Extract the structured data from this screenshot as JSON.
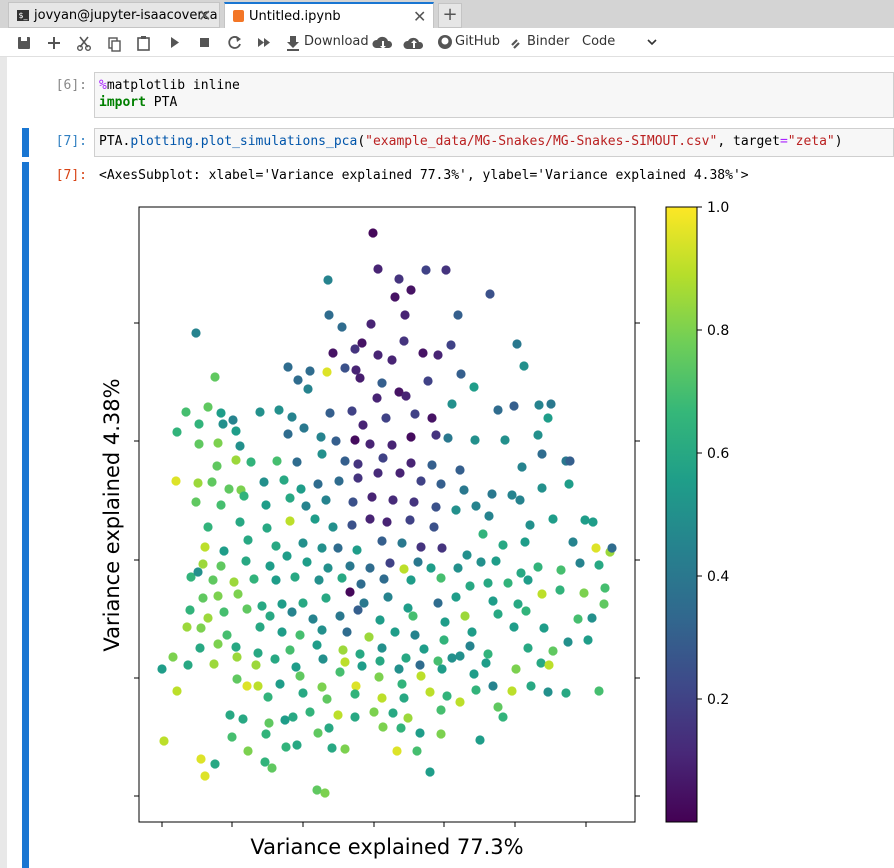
{
  "tabs": [
    {
      "label": "jovyan@jupyter-isaacoverca"
    },
    {
      "label": "Untitled.ipynb"
    }
  ],
  "toolbar": {
    "download": "Download",
    "github": "GitHub",
    "binder": "Binder",
    "cell_type": "Code"
  },
  "cells": [
    {
      "prompt": "[6]:",
      "source": [
        [
          "%",
          "matplotlib inline"
        ],
        [
          "import",
          "PTA"
        ]
      ]
    },
    {
      "prompt": "[7]:",
      "source": [
        "PTA.",
        "plotting",
        ".",
        "plot_simulations_pca",
        "(",
        "\"example_data/MG-Snakes/MG-Snakes-SIMOUT.csv\"",
        ", target",
        "=",
        "\"zeta\"",
        ")"
      ],
      "output_prompt": "[7]:",
      "output_text": "<AxesSubplot: xlabel='Variance explained 77.3%', ylabel='Variance explained 4.38%'>"
    }
  ],
  "chart_data": {
    "type": "scatter",
    "xlabel": "Variance explained 77.3%",
    "ylabel": "Variance explained 4.38%",
    "colormap": "viridis",
    "x": [
      373,
      378,
      399,
      426,
      446,
      411,
      395,
      328,
      490,
      196,
      329,
      458,
      371,
      342,
      405,
      404,
      355,
      362,
      333,
      378,
      438,
      451,
      517,
      423,
      392,
      288,
      327,
      310,
      345,
      356,
      298,
      215,
      360,
      382,
      428,
      461,
      524,
      474,
      308,
      399,
      406,
      377,
      415,
      186,
      208,
      221,
      233,
      260,
      279,
      292,
      330,
      352,
      363,
      386,
      432,
      452,
      498,
      514,
      539,
      551,
      548,
      177,
      199,
      223,
      236,
      199,
      240,
      218,
      288,
      304,
      321,
      336,
      355,
      370,
      392,
      411,
      436,
      448,
      475,
      505,
      538,
      217,
      236,
      251,
      277,
      297,
      322,
      345,
      358,
      383,
      411,
      432,
      460,
      522,
      542,
      566,
      570,
      176,
      198,
      212,
      229,
      241,
      264,
      284,
      301,
      318,
      339,
      358,
      378,
      400,
      421,
      441,
      464,
      492,
      512,
      542,
      569,
      196,
      221,
      244,
      266,
      290,
      306,
      326,
      353,
      372,
      393,
      414,
      436,
      456,
      476,
      520,
      208,
      240,
      267,
      290,
      315,
      333,
      352,
      370,
      387,
      410,
      434,
      489,
      530,
      553,
      585,
      593,
      205,
      224,
      248,
      276,
      303,
      322,
      338,
      357,
      382,
      402,
      421,
      442,
      467,
      483,
      503,
      525,
      573,
      596,
      610,
      612,
      203,
      221,
      246,
      270,
      287,
      307,
      328,
      350,
      370,
      390,
      404,
      418,
      431,
      458,
      481,
      496,
      521,
      538,
      561,
      580,
      599,
      191,
      198,
      213,
      234,
      254,
      276,
      295,
      319,
      342,
      361,
      384,
      411,
      441,
      470,
      488,
      508,
      528,
      560,
      584,
      605,
      190,
      203,
      218,
      238,
      262,
      282,
      303,
      326,
      350,
      364,
      388,
      408,
      438,
      456,
      493,
      518,
      542,
      604,
      208,
      224,
      247,
      270,
      292,
      313,
      340,
      358,
      380,
      413,
      445,
      465,
      498,
      526,
      544,
      578,
      592,
      187,
      201,
      227,
      260,
      282,
      300,
      322,
      347,
      369,
      395,
      415,
      444,
      472,
      514,
      568,
      588,
      173,
      200,
      218,
      236,
      258,
      290,
      317,
      343,
      360,
      382,
      406,
      424,
      452,
      470,
      488,
      528,
      553,
      162,
      188,
      214,
      237,
      256,
      275,
      296,
      323,
      345,
      362,
      380,
      399,
      420,
      438,
      460,
      486,
      516,
      541,
      549,
      237,
      258,
      280,
      300,
      322,
      340,
      356,
      379,
      402,
      421,
      442,
      474,
      493,
      512,
      531,
      548,
      566,
      599,
      177,
      247,
      268,
      303,
      327,
      355,
      382,
      404,
      430,
      447,
      460,
      476,
      498,
      230,
      243,
      269,
      285,
      293,
      310,
      338,
      355,
      374,
      393,
      408,
      441,
      503,
      164,
      232,
      266,
      286,
      297,
      329,
      318,
      345,
      383,
      401,
      420,
      441,
      480,
      248,
      332,
      397,
      417,
      201,
      215,
      265,
      205,
      272,
      430,
      317,
      325
    ],
    "values": [
      767,
      731,
      721,
      730,
      730,
      710,
      703,
      720,
      706,
      667,
      685,
      685,
      676,
      673,
      685,
      659,
      651,
      657,
      647,
      645,
      645,
      655,
      656,
      647,
      640,
      633,
      628,
      629,
      632,
      630,
      620,
      623,
      622,
      617,
      619,
      626,
      634,
      613,
      611,
      608,
      604,
      602,
      586,
      588,
      593,
      587,
      580,
      588,
      590,
      583,
      587,
      589,
      575,
      582,
      582,
      596,
      590,
      594,
      595,
      596,
      582,
      568,
      576,
      576,
      569,
      556,
      554,
      557,
      566,
      572,
      563,
      559,
      560,
      556,
      555,
      563,
      565,
      562,
      560,
      560,
      565,
      534,
      540,
      538,
      539,
      538,
      546,
      539,
      536,
      542,
      537,
      535,
      530,
      533,
      546,
      539,
      539,
      519,
      517,
      518,
      511,
      510,
      518,
      520,
      511,
      516,
      519,
      522,
      527,
      527,
      519,
      516,
      510,
      506,
      505,
      512,
      516,
      498,
      495,
      504,
      495,
      502,
      494,
      500,
      498,
      503,
      500,
      498,
      493,
      490,
      494,
      500,
      473,
      478,
      472,
      479,
      481,
      473,
      475,
      481,
      478,
      480,
      473,
      484,
      475,
      481,
      480,
      478,
      453,
      449,
      460,
      454,
      457,
      452,
      452,
      450,
      459,
      457,
      453,
      452,
      445,
      466,
      455,
      458,
      458,
      452,
      448,
      452,
      436,
      434,
      439,
      434,
      444,
      438,
      432,
      434,
      432,
      437,
      431,
      438,
      432,
      432,
      438,
      439,
      427,
      433,
      430,
      437,
      435,
      423,
      428,
      420,
      418,
      421,
      420,
      423,
      420,
      422,
      416,
      421,
      420,
      422,
      414,
      417,
      417,
      420,
      410,
      407,
      412,
      390,
      402,
      404,
      406,
      394,
      396,
      397,
      402,
      408,
      397,
      403,
      392,
      397,
      403,
      399,
      396,
      406,
      396,
      382,
      388,
      391,
      384,
      388,
      381,
      384,
      390,
      380,
      384,
      378,
      384,
      386,
      389,
      372,
      381,
      382,
      373,
      372,
      365,
      373,
      368,
      365,
      370,
      368,
      363,
      368,
      365,
      360,
      368,
      373,
      358,
      360,
      343,
      352,
      356,
      353,
      347,
      350,
      355,
      350,
      346,
      352,
      342,
      351,
      342,
      354,
      346,
      352,
      349,
      331,
      335,
      336,
      343,
      335,
      341,
      333,
      341,
      338,
      334,
      339,
      331,
      335,
      339,
      344,
      337,
      331,
      337,
      335,
      321,
      314,
      316,
      324,
      313,
      328,
      314,
      323,
      316,
      324,
      331,
      326,
      314,
      309,
      314,
      308,
      307,
      309,
      309,
      314,
      303,
      307,
      301,
      306,
      302,
      302,
      308,
      304,
      298,
      310,
      293,
      285,
      281,
      277,
      280,
      283,
      288,
      285,
      283,
      288,
      287,
      282,
      290,
      283,
      259,
      263,
      266,
      253,
      255,
      272,
      267,
      251,
      273,
      272,
      267,
      266,
      260,
      249,
      252,
      249,
      249,
      241,
      236,
      238,
      224,
      232,
      228,
      210,
      207
    ],
    "color_values": [
      0.02,
      0.1,
      0.15,
      0.2,
      0.15,
      0.05,
      0.05,
      0.45,
      0.25,
      0.45,
      0.35,
      0.3,
      0.1,
      0.35,
      0.1,
      0.15,
      0.15,
      0.05,
      0.05,
      0.1,
      0.1,
      0.2,
      0.4,
      0.05,
      0.1,
      0.35,
      0.95,
      0.35,
      0.25,
      0.1,
      0.35,
      0.75,
      0.08,
      0.3,
      0.2,
      0.3,
      0.5,
      0.55,
      0.45,
      0.05,
      0.1,
      0.1,
      0.2,
      0.7,
      0.75,
      0.55,
      0.45,
      0.5,
      0.5,
      0.45,
      0.3,
      0.2,
      0.1,
      0.2,
      0.05,
      0.5,
      0.35,
      0.3,
      0.45,
      0.4,
      0.55,
      0.65,
      0.65,
      0.5,
      0.55,
      0.75,
      0.5,
      0.8,
      0.35,
      0.4,
      0.45,
      0.3,
      0.03,
      0.1,
      0.1,
      0.03,
      0.15,
      0.4,
      0.5,
      0.5,
      0.5,
      0.75,
      0.85,
      0.65,
      0.7,
      0.35,
      0.5,
      0.3,
      0.15,
      0.2,
      0.1,
      0.3,
      0.3,
      0.45,
      0.35,
      0.4,
      0.3,
      0.95,
      0.85,
      0.75,
      0.75,
      0.8,
      0.5,
      0.6,
      0.55,
      0.35,
      0.35,
      0.15,
      0.12,
      0.1,
      0.2,
      0.3,
      0.4,
      0.4,
      0.45,
      0.5,
      0.55,
      0.75,
      0.7,
      0.65,
      0.55,
      0.6,
      0.45,
      0.45,
      0.25,
      0.1,
      0.12,
      0.15,
      0.25,
      0.5,
      0.45,
      0.45,
      0.65,
      0.6,
      0.6,
      0.9,
      0.55,
      0.5,
      0.25,
      0.1,
      0.1,
      0.2,
      0.25,
      0.45,
      0.5,
      0.55,
      0.55,
      0.55,
      0.9,
      0.55,
      0.6,
      0.6,
      0.5,
      0.5,
      0.35,
      0.55,
      0.3,
      0.4,
      0.15,
      0.15,
      0.5,
      0.65,
      0.6,
      0.55,
      0.45,
      0.95,
      0.85,
      0.35,
      0.85,
      0.75,
      0.6,
      0.55,
      0.55,
      0.55,
      0.5,
      0.4,
      0.35,
      0.2,
      0.9,
      0.4,
      0.55,
      0.5,
      0.5,
      0.55,
      0.6,
      0.65,
      0.7,
      0.45,
      0.6,
      0.65,
      0.5,
      0.75,
      0.85,
      0.65,
      0.55,
      0.6,
      0.5,
      0.6,
      0.35,
      0.35,
      0.55,
      0.7,
      0.6,
      0.6,
      0.65,
      0.55,
      0.65,
      0.8,
      0.7,
      0.65,
      0.75,
      0.8,
      0.8,
      0.6,
      0.55,
      0.6,
      0.6,
      0.02,
      0.4,
      0.45,
      0.55,
      0.35,
      0.55,
      0.55,
      0.6,
      0.9,
      0.75,
      0.85,
      0.7,
      0.75,
      0.6,
      0.45,
      0.45,
      0.4,
      0.3,
      0.55,
      0.7,
      0.55,
      0.85,
      0.6,
      0.65,
      0.55,
      0.7,
      0.5,
      0.85,
      0.8,
      0.7,
      0.6,
      0.55,
      0.7,
      0.5,
      0.35,
      0.85,
      0.55,
      0.45,
      0.65,
      0.55,
      0.55,
      0.5,
      0.55,
      0.8,
      0.6,
      0.8,
      0.6,
      0.6,
      0.7,
      0.55,
      0.85,
      0.6,
      0.5,
      0.6,
      0.55,
      0.5,
      0.45,
      0.65,
      0.6,
      0.75,
      0.55,
      0.6,
      0.85,
      0.85,
      0.85,
      0.6,
      0.55,
      0.5,
      0.9,
      0.55,
      0.6,
      0.5,
      0.35,
      0.7,
      0.5,
      0.55,
      0.8,
      0.6,
      0.9,
      0.75,
      0.9,
      0.55,
      0.75,
      0.8,
      0.7,
      0.95,
      0.8,
      0.65,
      0.9,
      0.55,
      0.55,
      0.45,
      0.9,
      0.6,
      0.5,
      0.6,
      0.7,
      0.9,
      0.95,
      0.65,
      0.6,
      0.75,
      0.65,
      0.9,
      0.6,
      0.9,
      0.65,
      0.9,
      0.65,
      0.75,
      0.6,
      0.6,
      0.75,
      0.55,
      0.6,
      0.65,
      0.9,
      0.6,
      0.8,
      0.6,
      0.85,
      0.7,
      0.65,
      0.9,
      0.7,
      0.65,
      0.65,
      0.6,
      0.6,
      0.75,
      0.8,
      0.8,
      0.65,
      0.55,
      0.8,
      0.55,
      0.8,
      0.6,
      0.95,
      0.7,
      0.95,
      0.6,
      0.65,
      0.95,
      0.75,
      0.55,
      0.75,
      0.8
    ],
    "xlim": [
      139,
      635
    ],
    "ylim": [
      178,
      793
    ],
    "xticks": [
      162,
      232,
      303,
      374,
      444,
      515,
      586
    ],
    "yticks": [
      204,
      322,
      440,
      559,
      677
    ],
    "colorbar": {
      "lim": [
        0,
        1
      ],
      "ticks": [
        0.2,
        0.4,
        0.6,
        0.8,
        {
          "value": 1,
          "label": "1.0"
        }
      ]
    }
  }
}
